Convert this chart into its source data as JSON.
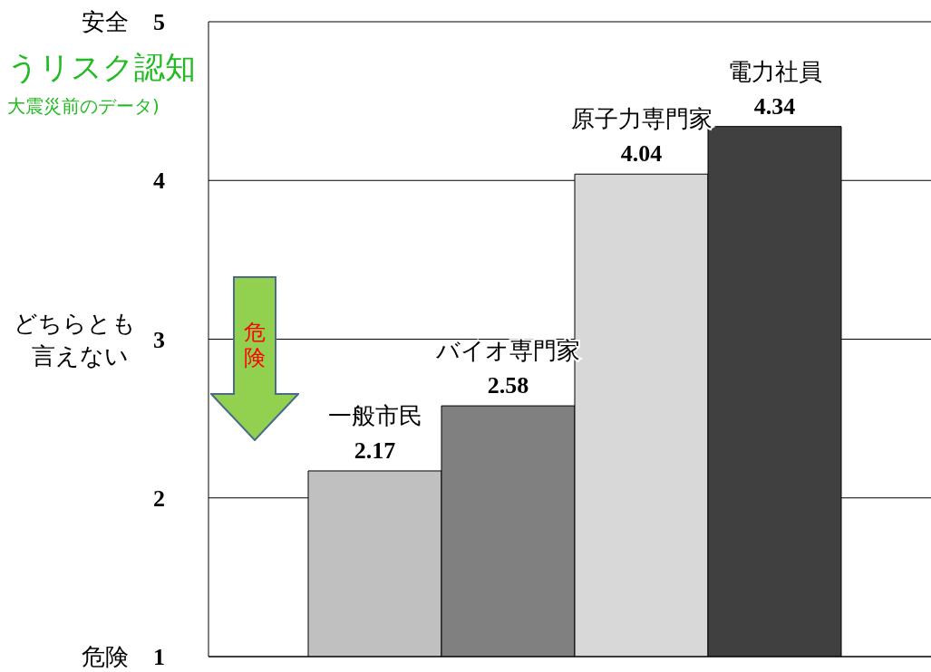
{
  "chart_data": {
    "type": "bar",
    "title": "うリスク認知",
    "subtitle": "大震災前のデータ)",
    "categories": [
      "一般市民",
      "バイオ専門家",
      "原子力専門家",
      "電力社員"
    ],
    "values": [
      2.17,
      2.58,
      4.04,
      4.34
    ],
    "colors": [
      "#c0c0c0",
      "#808080",
      "#d8d8d8",
      "#404040"
    ],
    "ylim": [
      1,
      5
    ],
    "yticks": [
      {
        "value": 1,
        "label": "危険 1"
      },
      2,
      {
        "value": 3,
        "label": "どちらとも言えない 3"
      },
      4,
      {
        "value": 5,
        "label": "安全 5"
      }
    ],
    "grid": "y",
    "data_labels": true,
    "tick_labels": "y",
    "annotations": [
      "危険"
    ]
  }
}
